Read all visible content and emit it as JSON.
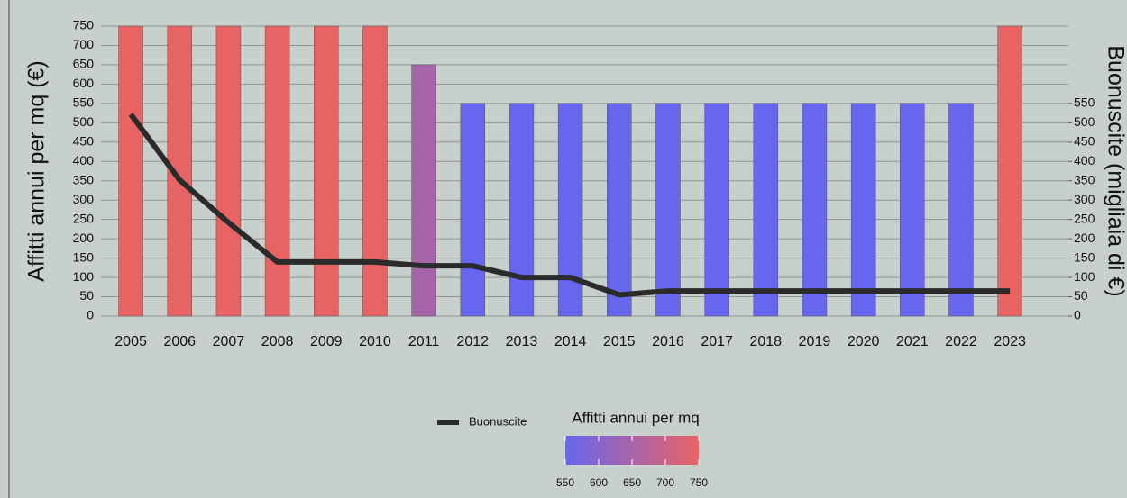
{
  "chart_data": {
    "type": "bar",
    "categories": [
      "2005",
      "2006",
      "2007",
      "2008",
      "2009",
      "2010",
      "2011",
      "2012",
      "2013",
      "2014",
      "2015",
      "2016",
      "2017",
      "2018",
      "2019",
      "2020",
      "2021",
      "2022",
      "2023"
    ],
    "values": [
      750,
      750,
      750,
      750,
      750,
      750,
      650,
      550,
      550,
      550,
      550,
      550,
      550,
      550,
      550,
      550,
      550,
      550,
      750
    ],
    "colorscale": [
      "#6666ee",
      "#e86464"
    ],
    "colorbar_title": "Affitti annui per mq",
    "colorbar_range": [
      550,
      750
    ],
    "colorbar_ticks": [
      550,
      600,
      650,
      700,
      750
    ],
    "series": [
      {
        "name": "Buonuscite",
        "color": "#2b2b2b",
        "axis": "y2",
        "values": [
          522,
          352,
          242,
          140,
          140,
          140,
          130,
          130,
          100,
          100,
          55,
          65,
          65,
          65,
          65,
          65,
          65,
          65,
          65
        ]
      }
    ],
    "ylabel": "Affitti annui per mq (€)",
    "y2label": "Buonuscite (migliaia di €)",
    "ylim": [
      0,
      750
    ],
    "yticks": [
      0,
      50,
      100,
      150,
      200,
      250,
      300,
      350,
      400,
      450,
      500,
      550,
      600,
      650,
      700,
      750
    ],
    "y2lim": [
      0,
      750
    ],
    "y2ticks": [
      0,
      50,
      100,
      150,
      200,
      250,
      300,
      350,
      400,
      450,
      500,
      550
    ],
    "grid": true
  }
}
